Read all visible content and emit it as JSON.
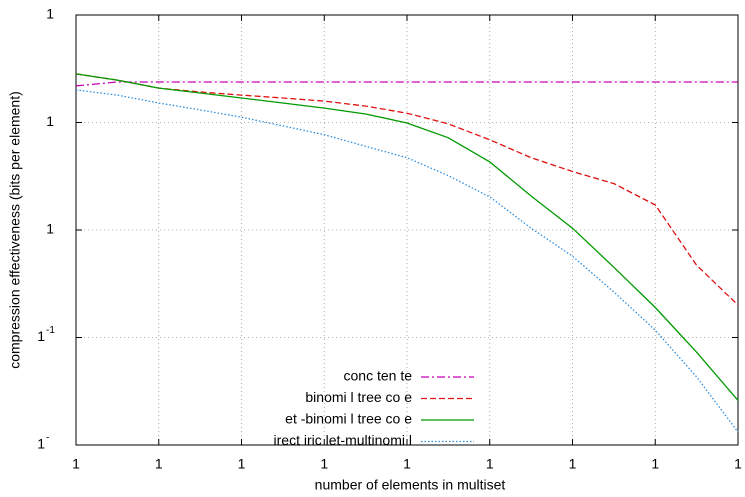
{
  "chart_data": {
    "type": "line",
    "xlabel": "number of elements in multiset",
    "ylabel": "compression effectiveness (bits per element)",
    "xscale": "log",
    "yscale": "log",
    "grid": true,
    "xlim": [
      1,
      100000000
    ],
    "ylim": [
      0.01,
      100
    ],
    "xticks": [
      {
        "value": 1,
        "label": "1"
      },
      {
        "value": 10,
        "label": "1"
      },
      {
        "value": 100,
        "label": "1"
      },
      {
        "value": 1000,
        "label": "1"
      },
      {
        "value": 10000,
        "label": "1"
      },
      {
        "value": 100000,
        "label": "1"
      },
      {
        "value": 1000000,
        "label": "1"
      },
      {
        "value": 10000000,
        "label": "1"
      },
      {
        "value": 100000000,
        "label": "1"
      }
    ],
    "yticks": [
      {
        "value": 100,
        "label": "1"
      },
      {
        "value": 10,
        "label": "1"
      },
      {
        "value": 1,
        "label": "1"
      },
      {
        "value": 0.1,
        "label": "1",
        "sup": "-1"
      },
      {
        "value": 0.01,
        "label": "1",
        "sup": "-"
      }
    ],
    "x": [
      1,
      3.16,
      10,
      31.6,
      100,
      316,
      1000,
      3162,
      10000,
      31623,
      100000,
      316228,
      1000000,
      3162278,
      10000000,
      31622777,
      100000000
    ],
    "series": [
      {
        "name": "conc ten te",
        "color": "#c800b4",
        "style": "dashdot",
        "values": [
          21.9,
          23.8,
          23.8,
          23.8,
          23.8,
          23.8,
          23.8,
          23.8,
          23.8,
          23.8,
          23.8,
          23.8,
          23.8,
          23.8,
          23.8,
          23.8,
          23.8
        ]
      },
      {
        "name": "binomi l tree co e",
        "color": "#e01010",
        "style": "dashed",
        "values": [
          28.3,
          24.8,
          20.9,
          19.2,
          18.0,
          16.9,
          15.8,
          14.2,
          12.2,
          9.7,
          6.9,
          4.7,
          3.5,
          2.7,
          1.71,
          0.47,
          0.2
        ]
      },
      {
        "name": "et -binomi l tree co e",
        "color": "#009a00",
        "style": "solid",
        "values": [
          28.3,
          24.8,
          20.9,
          18.8,
          16.9,
          15.2,
          13.6,
          12.0,
          9.9,
          7.2,
          4.3,
          2.07,
          1.04,
          0.45,
          0.19,
          0.073,
          0.026
        ]
      },
      {
        "name": "irect iric let-multinomi l",
        "color": "#2a8ee0",
        "style": "dotted",
        "values": [
          20.1,
          18.0,
          15.2,
          13.1,
          11.2,
          9.3,
          7.7,
          6.0,
          4.7,
          3.2,
          2.03,
          1.04,
          0.57,
          0.265,
          0.117,
          0.043,
          0.0132
        ]
      }
    ]
  }
}
